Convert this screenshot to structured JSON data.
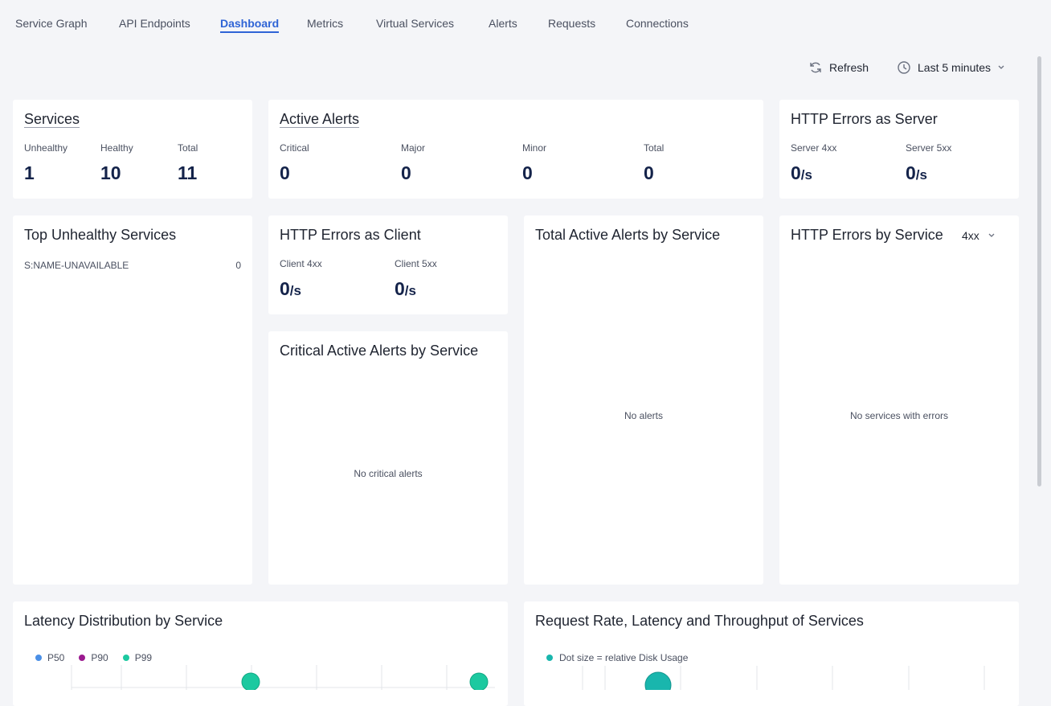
{
  "tabs": [
    "Service Graph",
    "API Endpoints",
    "Dashboard",
    "Metrics",
    "Virtual Services",
    "Alerts",
    "Requests",
    "Connections"
  ],
  "toolbar": {
    "refresh": "Refresh",
    "time_range": "Last 5 minutes"
  },
  "services": {
    "title": "Services",
    "stats": [
      {
        "label": "Unhealthy",
        "value": 1
      },
      {
        "label": "Healthy",
        "value": 10
      },
      {
        "label": "Total",
        "value": 11
      }
    ]
  },
  "active_alerts": {
    "title": "Active Alerts",
    "stats": [
      {
        "label": "Critical",
        "value": 0
      },
      {
        "label": "Major",
        "value": 0
      },
      {
        "label": "Minor",
        "value": 0
      },
      {
        "label": "Total",
        "value": 0
      }
    ]
  },
  "http_errors_server": {
    "title": "HTTP Errors as Server",
    "stats": [
      {
        "label": "Server 4xx",
        "value": 0,
        "unit": "/s"
      },
      {
        "label": "Server 5xx",
        "value": 0,
        "unit": "/s"
      }
    ]
  },
  "top_unhealthy": {
    "title": "Top Unhealthy Services",
    "rows": [
      {
        "name": "S:NAME-UNAVAILABLE",
        "value": 0
      }
    ]
  },
  "http_errors_client": {
    "title": "HTTP Errors as Client",
    "stats": [
      {
        "label": "Client 4xx",
        "value": 0,
        "unit": "/s"
      },
      {
        "label": "Client 5xx",
        "value": 0,
        "unit": "/s"
      }
    ]
  },
  "critical_alerts": {
    "title": "Critical Active Alerts by Service",
    "empty": "No critical alerts"
  },
  "total_alerts": {
    "title": "Total Active Alerts by Service",
    "empty": "No alerts"
  },
  "http_errors_by_service": {
    "title": "HTTP Errors by Service",
    "filter": "4xx",
    "empty": "No services with errors"
  },
  "latency": {
    "title": "Latency Distribution by Service",
    "legend": [
      "P50",
      "P90",
      "P99"
    ]
  },
  "request_rate": {
    "title": "Request Rate, Latency and Throughput of Services",
    "legend": "Dot size = relative Disk Usage"
  }
}
